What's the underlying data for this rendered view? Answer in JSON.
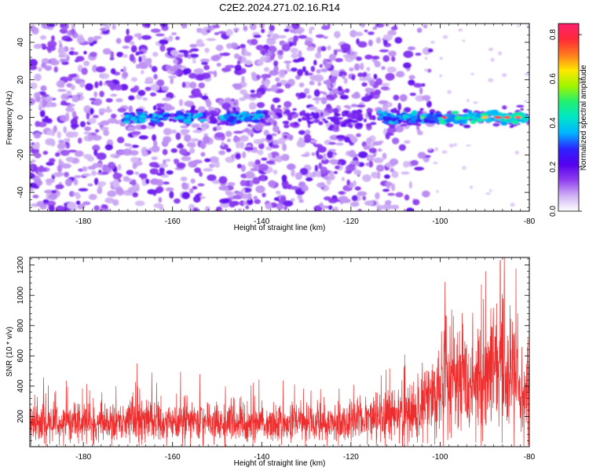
{
  "title": "C2E2.2024.271.02.16.R14",
  "chart_data": [
    {
      "type": "heatmap",
      "xlabel": "Height of straight line (km)",
      "ylabel": "Frequency (Hz)",
      "xlim": [
        -192,
        -80
      ],
      "ylim": [
        -50,
        50
      ],
      "xticks": [
        -180,
        -160,
        -140,
        -120,
        -100,
        -80
      ],
      "yticks": [
        -40,
        -20,
        0,
        20,
        40
      ],
      "colorbar": {
        "label": "Normalized spectral amplitude",
        "range": [
          0,
          0.85
        ],
        "ticks": [
          0,
          0.2,
          0.4,
          0.6,
          0.8
        ],
        "colormap": [
          "#ffffff",
          "#cfb0f3",
          "#8e3df0",
          "#5500ee",
          "#2c24ff",
          "#00b4ff",
          "#00e6c8",
          "#22f070",
          "#9ff500",
          "#ffe800",
          "#ff7a1f",
          "#ff2a38",
          "#ff1f6e"
        ]
      },
      "features": {
        "central_line_frequency": 0,
        "noise_extent_x": [
          -192,
          -104
        ],
        "strong_signal_segments": [
          [
            -171,
            -166
          ],
          [
            -165,
            -161
          ],
          [
            -159,
            -153
          ],
          [
            -149,
            -140
          ],
          [
            -114,
            -80
          ]
        ]
      }
    },
    {
      "type": "line",
      "xlabel": "Height of straight line (km)",
      "ylabel": "SNR (10 * v/v)",
      "xlim": [
        -192,
        -80
      ],
      "ylim": [
        0,
        1250
      ],
      "xticks": [
        -180,
        -160,
        -140,
        -120,
        -100,
        -80
      ],
      "yticks": [
        200,
        400,
        600,
        800,
        1000,
        1200
      ],
      "series": [
        {
          "color": "#ee2e2e",
          "profile_points": [
            [
              -192,
              150
            ],
            [
              -180,
              150
            ],
            [
              -165,
              170
            ],
            [
              -150,
              160
            ],
            [
              -130,
              150
            ],
            [
              -120,
              160
            ],
            [
              -110,
              200
            ],
            [
              -105,
              220
            ],
            [
              -102,
              350
            ],
            [
              -100,
              430
            ],
            [
              -96,
              450
            ],
            [
              -93,
              360
            ],
            [
              -91,
              420
            ],
            [
              -89,
              520
            ],
            [
              -87,
              560
            ],
            [
              -85,
              520
            ],
            [
              -83,
              420
            ],
            [
              -81,
              300
            ],
            [
              -80,
              450
            ]
          ],
          "peak": [
            -86.5,
            1230
          ]
        }
      ]
    }
  ]
}
